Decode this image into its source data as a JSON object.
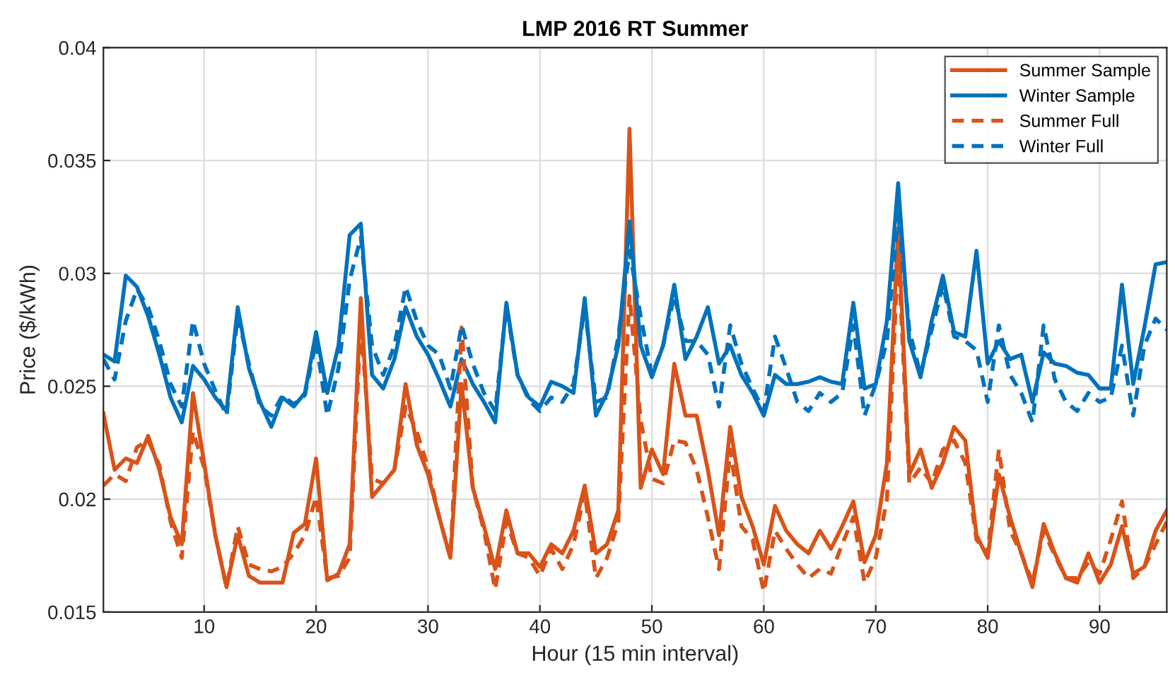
{
  "chart_data": {
    "type": "line",
    "title": "LMP 2016 RT Summer",
    "xlabel": "Hour (15 min interval)",
    "ylabel": "Price ($/kWh)",
    "x": [
      1,
      2,
      3,
      4,
      5,
      6,
      7,
      8,
      9,
      10,
      11,
      12,
      13,
      14,
      15,
      16,
      17,
      18,
      19,
      20,
      21,
      22,
      23,
      24,
      25,
      26,
      27,
      28,
      29,
      30,
      31,
      32,
      33,
      34,
      35,
      36,
      37,
      38,
      39,
      40,
      41,
      42,
      43,
      44,
      45,
      46,
      47,
      48,
      49,
      50,
      51,
      52,
      53,
      54,
      55,
      56,
      57,
      58,
      59,
      60,
      61,
      62,
      63,
      64,
      65,
      66,
      67,
      68,
      69,
      70,
      71,
      72,
      73,
      74,
      75,
      76,
      77,
      78,
      79,
      80,
      81,
      82,
      83,
      84,
      85,
      86,
      87,
      88,
      89,
      90,
      91,
      92,
      93,
      94,
      95,
      96
    ],
    "series": [
      {
        "name": "Summer Sample",
        "color": "#d95319",
        "line_style": "solid",
        "values": [
          0.0238,
          0.0213,
          0.0218,
          0.0216,
          0.0228,
          0.0213,
          0.0192,
          0.018,
          0.0247,
          0.0216,
          0.0184,
          0.0161,
          0.0184,
          0.0166,
          0.0163,
          0.0163,
          0.0163,
          0.0185,
          0.0189,
          0.0218,
          0.0164,
          0.0167,
          0.018,
          0.0289,
          0.0201,
          0.0207,
          0.0213,
          0.0251,
          0.0224,
          0.0211,
          0.0192,
          0.0174,
          0.0251,
          0.0205,
          0.0188,
          0.0169,
          0.0195,
          0.0176,
          0.0176,
          0.017,
          0.018,
          0.0176,
          0.0186,
          0.0206,
          0.0176,
          0.018,
          0.0195,
          0.0364,
          0.0205,
          0.0222,
          0.0211,
          0.026,
          0.0237,
          0.0237,
          0.0213,
          0.0184,
          0.0232,
          0.0201,
          0.0188,
          0.0171,
          0.0197,
          0.0186,
          0.018,
          0.0176,
          0.0186,
          0.0178,
          0.0188,
          0.0199,
          0.0172,
          0.0184,
          0.0216,
          0.032,
          0.0211,
          0.0222,
          0.0205,
          0.0216,
          0.0232,
          0.0226,
          0.0184,
          0.0174,
          0.0211,
          0.0192,
          0.0176,
          0.0161,
          0.0189,
          0.0176,
          0.0165,
          0.0163,
          0.0176,
          0.0163,
          0.0171,
          0.0188,
          0.0167,
          0.017,
          0.0186,
          0.0195
        ]
      },
      {
        "name": "Winter Sample",
        "color": "#0072bd",
        "line_style": "solid",
        "values": [
          0.0264,
          0.0261,
          0.0299,
          0.0294,
          0.0281,
          0.0264,
          0.0245,
          0.0234,
          0.0259,
          0.0253,
          0.0245,
          0.0239,
          0.0285,
          0.0258,
          0.0243,
          0.0232,
          0.0245,
          0.0241,
          0.0247,
          0.0274,
          0.0247,
          0.0268,
          0.0317,
          0.0322,
          0.0255,
          0.0249,
          0.0262,
          0.0285,
          0.0272,
          0.0264,
          0.0253,
          0.0241,
          0.0262,
          0.0251,
          0.0243,
          0.0234,
          0.0287,
          0.0255,
          0.0245,
          0.0241,
          0.0252,
          0.025,
          0.0247,
          0.0289,
          0.0237,
          0.0247,
          0.0268,
          0.0323,
          0.0268,
          0.0254,
          0.0268,
          0.0295,
          0.0262,
          0.0272,
          0.0285,
          0.026,
          0.0268,
          0.0255,
          0.0247,
          0.0237,
          0.0255,
          0.0251,
          0.0251,
          0.0252,
          0.0254,
          0.0252,
          0.0251,
          0.0287,
          0.0249,
          0.0251,
          0.0279,
          0.034,
          0.027,
          0.0254,
          0.0279,
          0.0299,
          0.0274,
          0.0272,
          0.031,
          0.026,
          0.027,
          0.0262,
          0.0264,
          0.0243,
          0.0265,
          0.026,
          0.0259,
          0.0256,
          0.0255,
          0.0249,
          0.0249,
          0.0295,
          0.0251,
          0.0276,
          0.0304,
          0.0305
        ]
      },
      {
        "name": "Summer Full",
        "color": "#d95319",
        "line_style": "dashed",
        "values": [
          0.0206,
          0.0211,
          0.0208,
          0.0223,
          0.0226,
          0.0215,
          0.019,
          0.0174,
          0.023,
          0.0214,
          0.0184,
          0.0161,
          0.0188,
          0.0171,
          0.0169,
          0.0168,
          0.017,
          0.0176,
          0.0184,
          0.0201,
          0.0165,
          0.0166,
          0.0174,
          0.0279,
          0.0209,
          0.0207,
          0.0213,
          0.0241,
          0.023,
          0.0214,
          0.0192,
          0.0174,
          0.0276,
          0.0205,
          0.0186,
          0.016,
          0.019,
          0.0176,
          0.0174,
          0.0166,
          0.0178,
          0.0169,
          0.018,
          0.0203,
          0.0165,
          0.0174,
          0.019,
          0.029,
          0.0235,
          0.0209,
          0.0207,
          0.0226,
          0.0225,
          0.0213,
          0.0192,
          0.0169,
          0.0222,
          0.0188,
          0.0182,
          0.0159,
          0.0186,
          0.0178,
          0.0171,
          0.0165,
          0.0169,
          0.0167,
          0.018,
          0.0192,
          0.0163,
          0.0174,
          0.02,
          0.031,
          0.0207,
          0.0214,
          0.0207,
          0.0222,
          0.0226,
          0.0216,
          0.0182,
          0.0176,
          0.0222,
          0.0186,
          0.0176,
          0.0163,
          0.0186,
          0.0175,
          0.0165,
          0.0165,
          0.0172,
          0.0167,
          0.0182,
          0.0199,
          0.0165,
          0.017,
          0.018,
          0.019
        ]
      },
      {
        "name": "Winter Full",
        "color": "#0072bd",
        "line_style": "dashed",
        "values": [
          0.0262,
          0.0253,
          0.0279,
          0.0293,
          0.0285,
          0.027,
          0.0251,
          0.0241,
          0.0279,
          0.026,
          0.0248,
          0.0237,
          0.0281,
          0.026,
          0.0241,
          0.0237,
          0.0246,
          0.0242,
          0.0246,
          0.027,
          0.0237,
          0.0258,
          0.0297,
          0.0316,
          0.0268,
          0.0255,
          0.0268,
          0.0294,
          0.0279,
          0.0268,
          0.0264,
          0.0249,
          0.0277,
          0.026,
          0.0247,
          0.0239,
          0.0285,
          0.0255,
          0.0244,
          0.0239,
          0.0245,
          0.0243,
          0.0251,
          0.0285,
          0.0243,
          0.0245,
          0.0272,
          0.031,
          0.0281,
          0.0255,
          0.0268,
          0.029,
          0.027,
          0.027,
          0.0264,
          0.0241,
          0.0277,
          0.026,
          0.0249,
          0.0239,
          0.0272,
          0.0258,
          0.0243,
          0.0239,
          0.0247,
          0.0243,
          0.0247,
          0.0277,
          0.0237,
          0.0251,
          0.027,
          0.0327,
          0.0275,
          0.0255,
          0.0275,
          0.0295,
          0.0272,
          0.027,
          0.0266,
          0.0243,
          0.0277,
          0.0255,
          0.0247,
          0.0234,
          0.0277,
          0.0253,
          0.0243,
          0.0239,
          0.0247,
          0.0243,
          0.0245,
          0.0268,
          0.0237,
          0.0268,
          0.028,
          0.0275
        ]
      }
    ],
    "xlim": [
      1,
      96
    ],
    "xticks": [
      10,
      20,
      30,
      40,
      50,
      60,
      70,
      80,
      90
    ],
    "ylim": [
      0.015,
      0.04
    ],
    "yticks": [
      0.015,
      0.02,
      0.025,
      0.03,
      0.035,
      0.04
    ],
    "grid": true,
    "legend": "top right",
    "marker": "none"
  }
}
